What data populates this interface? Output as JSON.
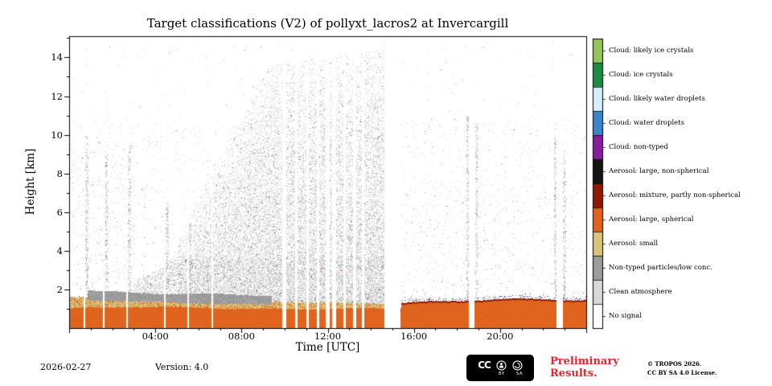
{
  "footer": {
    "date": "2026-02-27",
    "version": "Version: 4.0",
    "preliminary": "Preliminary Results.",
    "copyright_line1": "© TROPOS 2026.",
    "copyright_line2": "CC BY SA 4.0 License.",
    "badge": {
      "cc": "CC",
      "by": "BY",
      "sa": "SA"
    }
  },
  "chart_data": {
    "type": "heatmap",
    "title": "Target classifications (V2) of pollyxt_lacros2 at Invercargill",
    "xlabel": "Time [UTC]",
    "ylabel": "Height [km]",
    "x_range_hours": [
      0,
      24
    ],
    "y_range_km": [
      0,
      15.1
    ],
    "x_ticks": [
      {
        "h": 4,
        "label": "04:00"
      },
      {
        "h": 8,
        "label": "08:00"
      },
      {
        "h": 12,
        "label": "12:00"
      },
      {
        "h": 16,
        "label": "16:00"
      },
      {
        "h": 20,
        "label": "20:00"
      }
    ],
    "y_ticks": [
      {
        "km": 2,
        "label": "2"
      },
      {
        "km": 4,
        "label": "4"
      },
      {
        "km": 6,
        "label": "6"
      },
      {
        "km": 8,
        "label": "8"
      },
      {
        "km": 10,
        "label": "10"
      },
      {
        "km": 12,
        "label": "12"
      },
      {
        "km": 14,
        "label": "14"
      }
    ],
    "categories": [
      {
        "label": "Cloud: likely ice crystals",
        "color": "#96c35c"
      },
      {
        "label": "Cloud: ice crystals",
        "color": "#1f8a44"
      },
      {
        "label": "Cloud: likely water droplets",
        "color": "#d6edfb"
      },
      {
        "label": "Cloud: water droplets",
        "color": "#3d85c8"
      },
      {
        "label": "Cloud: non-typed",
        "color": "#851f9b"
      },
      {
        "label": "Aerosol: large, non-spherical",
        "color": "#141414"
      },
      {
        "label": "Aerosol: mixture, partly non-spherical",
        "color": "#8e1a04"
      },
      {
        "label": "Aerosol: large, spherical",
        "color": "#e0641e"
      },
      {
        "label": "Aerosol: small",
        "color": "#d8c47c"
      },
      {
        "label": "Non-typed particles/low conc.",
        "color": "#9c9c9c"
      },
      {
        "label": "Clean atmosphere",
        "color": "#d8d8d8"
      },
      {
        "label": "No signal",
        "color": "#ffffff"
      }
    ],
    "render": {
      "seed": 42,
      "speckle_samples": 230000,
      "plume": {
        "t_start": 3,
        "t_slow_end": 4.5,
        "t_rise_end": 9.2,
        "t_end": 14.63,
        "z_start": 2.4,
        "z_mid": 3.3,
        "z_peak": 13.6,
        "z_max": 14.4
      },
      "no_signal_stripes_hours": [
        [
          0.66,
          0.74
        ],
        [
          1.58,
          1.66
        ],
        [
          2.64,
          2.72
        ],
        [
          4.42,
          4.49
        ],
        [
          5.48,
          5.55
        ],
        [
          6.6,
          6.67
        ],
        [
          9.9,
          10.1
        ],
        [
          10.5,
          10.63
        ],
        [
          11.0,
          11.13
        ],
        [
          11.48,
          11.6
        ],
        [
          11.9,
          12.1
        ],
        [
          12.22,
          12.42
        ],
        [
          12.72,
          12.85
        ],
        [
          13.17,
          13.33
        ],
        [
          13.58,
          13.7
        ],
        [
          14.63,
          15.38
        ],
        [
          18.55,
          18.82
        ],
        [
          22.62,
          22.9
        ]
      ],
      "burst_columns": [
        {
          "t": 0.8,
          "z": 10.0,
          "n": 260
        },
        {
          "t": 1.72,
          "z": 9.0,
          "n": 220
        },
        {
          "t": 2.78,
          "z": 9.5,
          "n": 240
        },
        {
          "t": 4.54,
          "z": 6.5,
          "n": 160
        },
        {
          "t": 5.6,
          "z": 5.5,
          "n": 120
        },
        {
          "t": 18.48,
          "z": 11.0,
          "n": 300
        },
        {
          "t": 18.9,
          "z": 10.5,
          "n": 280
        },
        {
          "t": 22.55,
          "z": 10.0,
          "n": 260
        },
        {
          "t": 22.97,
          "z": 9.0,
          "n": 240
        }
      ]
    }
  }
}
